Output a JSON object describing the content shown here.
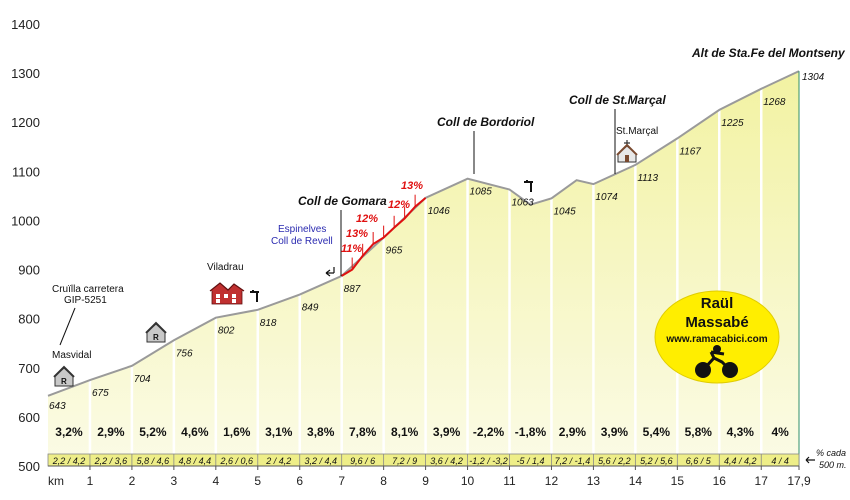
{
  "chart_data": {
    "type": "area",
    "title": "Alt de Sta.Fe del Montseny",
    "xlabel": "km",
    "ylabel": "",
    "y_ticks": [
      500,
      600,
      700,
      800,
      900,
      1000,
      1100,
      1200,
      1300,
      1400
    ],
    "ylim": [
      500,
      1400
    ],
    "x_ticks": [
      "1",
      "2",
      "3",
      "4",
      "5",
      "6",
      "7",
      "8",
      "9",
      "10",
      "11",
      "12",
      "13",
      "14",
      "15",
      "16",
      "17",
      "17,9"
    ],
    "xlim": [
      0,
      17.9
    ],
    "profile": [
      {
        "x": 0,
        "y": 643,
        "label": "643"
      },
      {
        "x": 1,
        "y": 675,
        "label": "675"
      },
      {
        "x": 2,
        "y": 704,
        "label": "704"
      },
      {
        "x": 3,
        "y": 756,
        "label": "756"
      },
      {
        "x": 4,
        "y": 802,
        "label": "802"
      },
      {
        "x": 5,
        "y": 818,
        "label": "818"
      },
      {
        "x": 6,
        "y": 849,
        "label": "849"
      },
      {
        "x": 7,
        "y": 887,
        "label": "887"
      },
      {
        "x": 8,
        "y": 965,
        "label": "965"
      },
      {
        "x": 9,
        "y": 1046,
        "label": "1046"
      },
      {
        "x": 10,
        "y": 1085,
        "label": "1085"
      },
      {
        "x": 11,
        "y": 1063,
        "label": "1063"
      },
      {
        "x": 11.5,
        "y": 1032,
        "label": ""
      },
      {
        "x": 12,
        "y": 1045,
        "label": "1045"
      },
      {
        "x": 12.6,
        "y": 1082,
        "label": ""
      },
      {
        "x": 13,
        "y": 1074,
        "label": "1074"
      },
      {
        "x": 14,
        "y": 1113,
        "label": "1113"
      },
      {
        "x": 15,
        "y": 1167,
        "label": "1167"
      },
      {
        "x": 16,
        "y": 1225,
        "label": "1225"
      },
      {
        "x": 17,
        "y": 1268,
        "label": "1268"
      },
      {
        "x": 17.9,
        "y": 1304,
        "label": "1304"
      }
    ],
    "segments": [
      {
        "grade": "3,2%",
        "detail": "2,2 / 4,2"
      },
      {
        "grade": "2,9%",
        "detail": "2,2 / 3,6"
      },
      {
        "grade": "5,2%",
        "detail": "5,8 / 4,6"
      },
      {
        "grade": "4,6%",
        "detail": "4,8 / 4,4"
      },
      {
        "grade": "1,6%",
        "detail": "2,6 / 0,6"
      },
      {
        "grade": "3,1%",
        "detail": "2 / 4,2"
      },
      {
        "grade": "3,8%",
        "detail": "3,2 / 4,4"
      },
      {
        "grade": "7,8%",
        "detail": "9,6 / 6"
      },
      {
        "grade": "8,1%",
        "detail": "7,2 / 9"
      },
      {
        "grade": "3,9%",
        "detail": "3,6 / 4,2"
      },
      {
        "grade": "-2,2%",
        "detail": "-1,2 / -3,2"
      },
      {
        "grade": "-1,8%",
        "detail": "-5 / 1,4"
      },
      {
        "grade": "2,9%",
        "detail": "7,2 / -1,4"
      },
      {
        "grade": "3,9%",
        "detail": "5,6 / 2,2"
      },
      {
        "grade": "5,4%",
        "detail": "5,2 / 5,6"
      },
      {
        "grade": "5,8%",
        "detail": "6,6 / 5"
      },
      {
        "grade": "4,3%",
        "detail": "4,4 / 4,2"
      },
      {
        "grade": "4%",
        "detail": "4 / 4"
      }
    ],
    "steep_section": [
      {
        "x": 7,
        "y": 887
      },
      {
        "x": 7.25,
        "y": 900
      },
      {
        "x": 7.5,
        "y": 928
      },
      {
        "x": 7.75,
        "y": 952
      },
      {
        "x": 8,
        "y": 965
      },
      {
        "x": 8.25,
        "y": 985
      },
      {
        "x": 8.5,
        "y": 1004
      },
      {
        "x": 8.75,
        "y": 1028
      },
      {
        "x": 9,
        "y": 1046
      }
    ],
    "steep_labels": [
      "11%",
      "13%",
      "12%",
      "12%",
      "13%"
    ],
    "passes": [
      {
        "name": "Coll de Gomara",
        "x": 7
      },
      {
        "name": "Coll de Bordoriol",
        "x": 10
      },
      {
        "name": "Coll de St.Marçal",
        "x": 13.4
      }
    ],
    "places": [
      {
        "name": "Masvidal",
        "x": 0.3
      },
      {
        "name": "Viladrau",
        "x": 4.3
      },
      {
        "name": "St.Marçal",
        "x": 13.9
      }
    ],
    "annotations": {
      "cruilla": [
        "Cruïlla carretera",
        "GIP-5251"
      ],
      "espinelves": [
        "Espinelves",
        "Coll de Revell"
      ],
      "footer_note": [
        "% cada",
        "500 m."
      ],
      "km_label": "km",
      "start_tick": "0"
    }
  },
  "brand": {
    "name_line1": "Raül",
    "name_line2": "Massabé",
    "site": "www.ramacabici.com"
  },
  "colors": {
    "fill_top": "#f2f2a2",
    "fill_bottom": "#fafae0",
    "line": "#999999",
    "steep": "#e01010",
    "badge": "#ffee00",
    "pass_text": "#111111",
    "blue_text": "#2a2ab0"
  }
}
